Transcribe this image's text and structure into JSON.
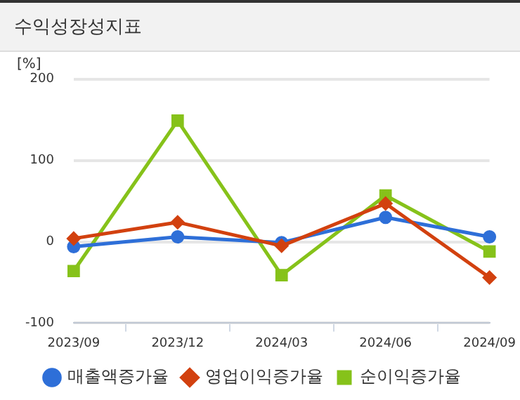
{
  "chart_data": {
    "type": "line",
    "title": "수익성장성지표",
    "ylabel": "[%]",
    "categories": [
      "2023/09",
      "2023/12",
      "2024/03",
      "2024/06",
      "2024/09"
    ],
    "series": [
      {
        "name": "매출액증가율",
        "color": "#2e6fd8",
        "marker": "circle",
        "values": [
          -6,
          6,
          -1,
          30,
          6
        ]
      },
      {
        "name": "영업이익증가율",
        "color": "#d2410f",
        "marker": "diamond",
        "values": [
          4,
          24,
          -5,
          47,
          -44
        ]
      },
      {
        "name": "순이익증가율",
        "color": "#86c21a",
        "marker": "square",
        "values": [
          -36,
          149,
          -41,
          57,
          -12
        ]
      }
    ],
    "ylim": [
      -100,
      200
    ],
    "yticks": [
      -100,
      0,
      100,
      200
    ],
    "grid": "y",
    "legend": "bottom"
  }
}
